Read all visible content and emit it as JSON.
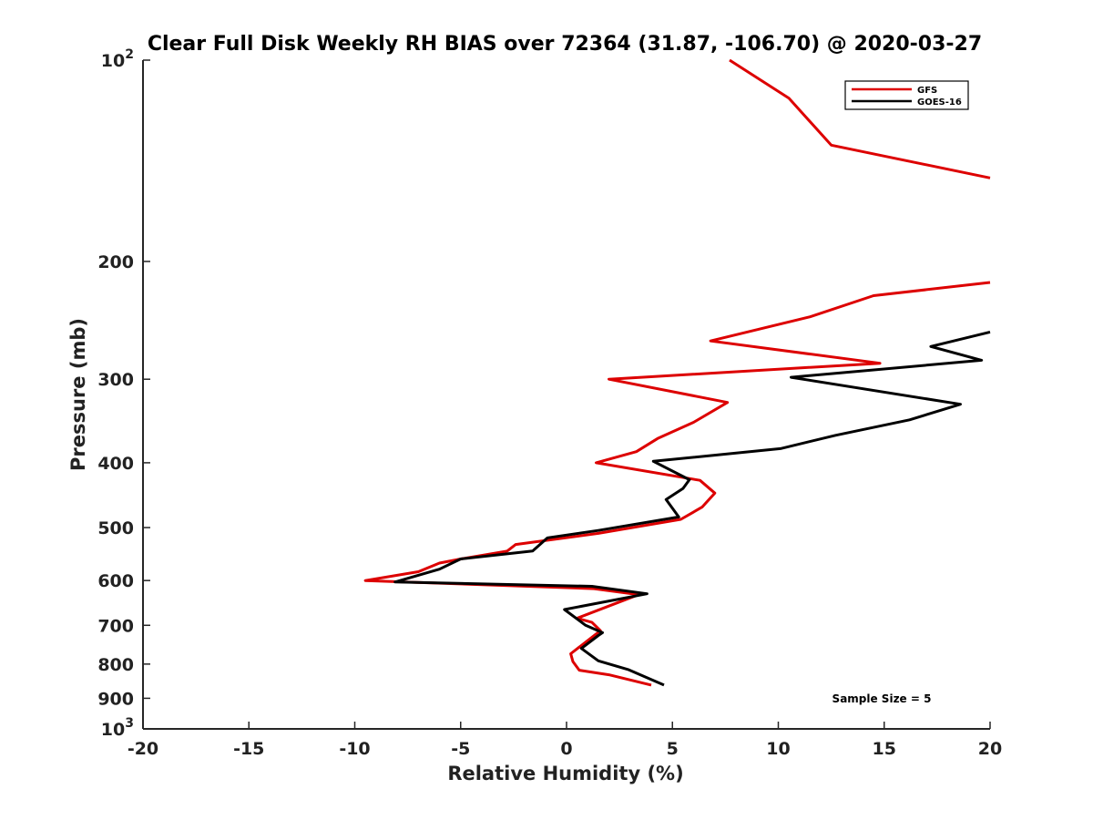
{
  "chart_data": {
    "type": "line",
    "title": "Clear Full Disk Weekly RH BIAS over 72364 (31.87, -106.70) @ 2020-03-27",
    "xlabel": "Relative Humidity (%)",
    "ylabel": "Pressure (mb)",
    "xlim": [
      -20,
      20
    ],
    "ylim": [
      100,
      1000
    ],
    "y_scale": "log",
    "y_reversed": true,
    "grid": false,
    "legend_position": "top-right",
    "x_ticks": [
      -20,
      -15,
      -10,
      -5,
      0,
      5,
      10,
      15,
      20
    ],
    "y_ticks": [
      {
        "value": 100,
        "base": "10",
        "exp": "2"
      },
      {
        "value": 200,
        "label": "200"
      },
      {
        "value": 300,
        "label": "300"
      },
      {
        "value": 400,
        "label": "400"
      },
      {
        "value": 500,
        "label": "500"
      },
      {
        "value": 600,
        "label": "600"
      },
      {
        "value": 700,
        "label": "700"
      },
      {
        "value": 800,
        "label": "800"
      },
      {
        "value": 900,
        "label": "900"
      },
      {
        "value": 1000,
        "base": "10",
        "exp": "3"
      }
    ],
    "annotation": "Sample Size = 5",
    "series": [
      {
        "name": "GFS",
        "color": "#dd0000",
        "points": [
          [
            7.7,
            100
          ],
          [
            10.5,
            114
          ],
          [
            12.5,
            134
          ],
          [
            20.0,
            150
          ],
          [
            null,
            null
          ],
          [
            20.0,
            215
          ],
          [
            14.5,
            225
          ],
          [
            11.5,
            242
          ],
          [
            6.8,
            263
          ],
          [
            14.8,
            284
          ],
          [
            2.0,
            300
          ],
          [
            7.6,
            325
          ],
          [
            6.0,
            348
          ],
          [
            4.3,
            368
          ],
          [
            3.3,
            385
          ],
          [
            1.4,
            400
          ],
          [
            6.3,
            425
          ],
          [
            7.0,
            444
          ],
          [
            6.4,
            466
          ],
          [
            5.4,
            486
          ],
          [
            1.5,
            510
          ],
          [
            -2.4,
            530
          ],
          [
            -2.8,
            542
          ],
          [
            -5.0,
            557
          ],
          [
            -6.0,
            565
          ],
          [
            -7.0,
            582
          ],
          [
            -9.5,
            600
          ],
          [
            1.3,
            617
          ],
          [
            3.4,
            630
          ],
          [
            0.5,
            683
          ],
          [
            1.2,
            693
          ],
          [
            1.6,
            713
          ],
          [
            0.2,
            772
          ],
          [
            0.3,
            793
          ],
          [
            0.6,
            817
          ],
          [
            2.0,
            830
          ],
          [
            4.0,
            860
          ]
        ]
      },
      {
        "name": "GOES-16",
        "color": "#000000",
        "points": [
          [
            20.0,
            255
          ],
          [
            17.2,
            268
          ],
          [
            19.6,
            281
          ],
          [
            10.6,
            298
          ],
          [
            18.6,
            327
          ],
          [
            16.2,
            345
          ],
          [
            12.7,
            364
          ],
          [
            10.1,
            381
          ],
          [
            4.1,
            398
          ],
          [
            5.8,
            424
          ],
          [
            5.5,
            437
          ],
          [
            4.7,
            454
          ],
          [
            5.3,
            482
          ],
          [
            1.5,
            505
          ],
          [
            -0.9,
            518
          ],
          [
            -1.6,
            542
          ],
          [
            -5.0,
            557
          ],
          [
            -6.0,
            577
          ],
          [
            -8.1,
            603
          ],
          [
            1.2,
            612
          ],
          [
            3.8,
            628
          ],
          [
            -0.1,
            663
          ],
          [
            0.9,
            700
          ],
          [
            1.7,
            718
          ],
          [
            1.5,
            725
          ],
          [
            0.7,
            758
          ],
          [
            1.5,
            791
          ],
          [
            2.9,
            815
          ],
          [
            4.6,
            860
          ]
        ]
      }
    ]
  }
}
